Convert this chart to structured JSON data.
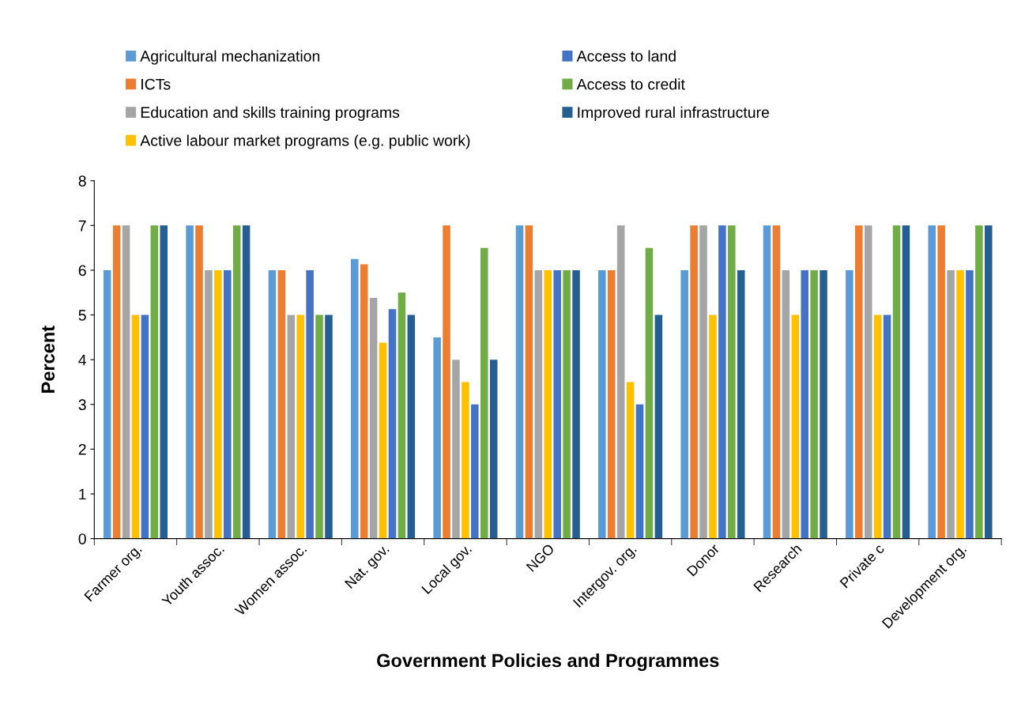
{
  "chart_data": {
    "type": "bar",
    "xlabel": "Government Policies and Programmes",
    "ylabel": "Percent",
    "categories": [
      "Farmer org.",
      "Youth assoc.",
      "Women assoc.",
      "Nat. gov.",
      "Local gov.",
      "NGO",
      "Intergov. org.",
      "Donor",
      "Research",
      "Private c",
      "Development org."
    ],
    "series": [
      {
        "name": "Agricultural mechanization",
        "color": "#5b9bd5",
        "values": [
          6,
          7,
          6,
          6.25,
          4.5,
          7,
          6,
          6,
          7,
          6,
          7
        ]
      },
      {
        "name": "ICTs",
        "color": "#ed7d31",
        "values": [
          7,
          7,
          6,
          6.13,
          7,
          7,
          6,
          7,
          7,
          7,
          7
        ]
      },
      {
        "name": "Education and skills training programs",
        "color": "#a5a5a5",
        "values": [
          7,
          6,
          5,
          5.38,
          4,
          6,
          7,
          7,
          6,
          7,
          6
        ]
      },
      {
        "name": "Active labour market programs (e.g. public work)",
        "color": "#ffc000",
        "values": [
          5,
          6,
          5,
          4.38,
          3.5,
          6,
          3.5,
          5,
          5,
          5,
          6
        ]
      },
      {
        "name": "Access to land",
        "color": "#4472c4",
        "values": [
          5,
          6,
          6,
          5.13,
          3,
          6,
          3,
          7,
          6,
          5,
          6
        ]
      },
      {
        "name": "Access to credit",
        "color": "#70ad47",
        "values": [
          7,
          7,
          5,
          5.5,
          6.5,
          6,
          6.5,
          7,
          6,
          7,
          7
        ]
      },
      {
        "name": "Improved rural infrastructure",
        "color": "#255e91",
        "values": [
          7,
          7,
          5,
          5,
          4,
          6,
          5,
          6,
          6,
          7,
          7
        ]
      }
    ],
    "ylim": [
      0,
      8
    ],
    "yticks": [
      0,
      1,
      2,
      3,
      4,
      5,
      6,
      7,
      8
    ],
    "grid": false,
    "legend": "top"
  }
}
